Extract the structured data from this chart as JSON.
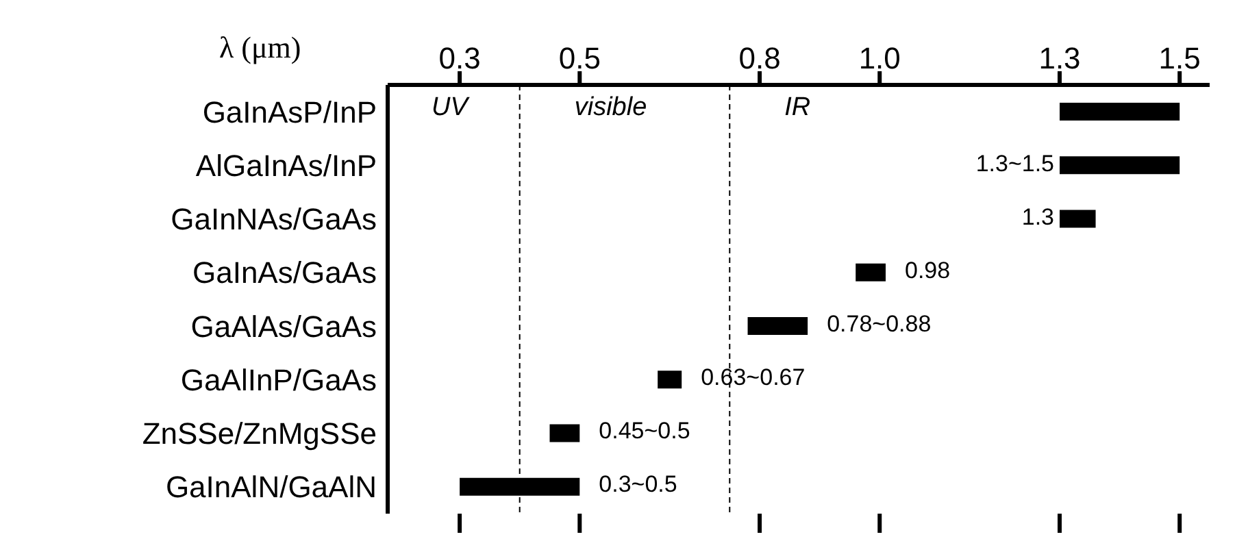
{
  "chart_data": {
    "type": "bar",
    "orientation": "horizontal",
    "xlabel": "λ (μm)",
    "categories": [
      "GaInAsP/InP",
      "AlGaInAs/InP",
      "GaInNAs/GaAs",
      "GaInAs/GaAs",
      "GaAlAs/GaAs",
      "GaAlInP/GaAs",
      "ZnSSe/ZnMgSSe",
      "GaInAlN/GaAlN"
    ],
    "base": [
      1.3,
      1.3,
      1.3,
      0.96,
      0.78,
      0.63,
      0.45,
      0.3
    ],
    "values": [
      0.2,
      0.2,
      0.06,
      0.05,
      0.1,
      0.04,
      0.05,
      0.2
    ],
    "color": "#000000",
    "xlim": [
      0.18,
      1.55
    ],
    "xticks": [
      {
        "value": 0.3,
        "label": "0.3"
      },
      {
        "value": 0.5,
        "label": "0.5"
      },
      {
        "value": 0.8,
        "label": "0.8"
      },
      {
        "value": 1.0,
        "label": "1.0"
      },
      {
        "value": 1.3,
        "label": "1.3"
      },
      {
        "value": 1.5,
        "label": "1.5"
      }
    ],
    "ref_lines": [
      {
        "axis": "x",
        "value": 0.4,
        "line_style": "dashed",
        "color": "#000000"
      },
      {
        "axis": "x",
        "value": 0.75,
        "line_style": "dashed",
        "color": "#000000"
      }
    ],
    "annotations": [
      "UV",
      "visible",
      "IR",
      {
        "text": "1.3~1.5",
        "x": 1.3,
        "y": "AlGaInAs/InP"
      },
      {
        "text": "1.3",
        "x": 1.3,
        "y": "GaInNAs/GaAs"
      },
      {
        "text": "0.98",
        "x": 1.01,
        "y": "GaInAs/GaAs"
      },
      {
        "text": "0.78~0.88",
        "x": 0.88,
        "y": "GaAlAs/GaAs"
      },
      {
        "text": "0.63~0.67",
        "x": 0.67,
        "y": "GaAlInP/GaAs"
      },
      {
        "text": "0.45~0.5",
        "x": 0.5,
        "y": "ZnSSe/ZnMgSSe"
      },
      {
        "text": "0.3~0.5",
        "x": 0.5,
        "y": "GaInAlN/GaAlN"
      }
    ]
  }
}
